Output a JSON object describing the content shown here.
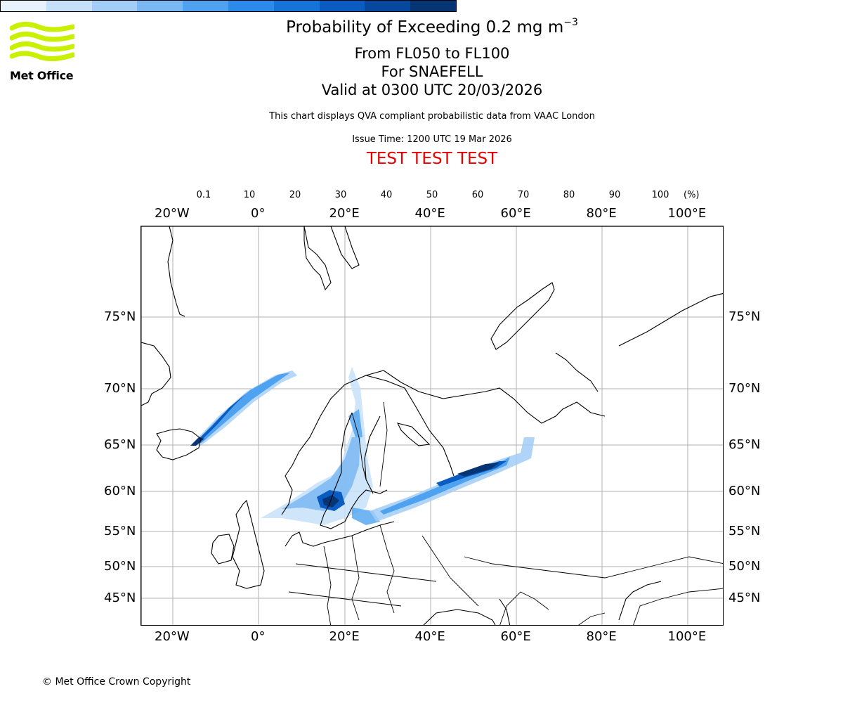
{
  "header": {
    "title": "Probability of Exceeding 0.2 mg m",
    "title_exp": "−3",
    "line1": "From FL050 to FL100",
    "line2": "For SNAEFELL",
    "line3": "Valid at 0300 UTC 20/03/2026",
    "description": "This chart displays QVA compliant probabilistic data from VAAC London",
    "issue_time": "Issue Time: 1200 UTC 19 Mar 2026",
    "test_banner": "TEST TEST TEST",
    "test_color": "#e60000"
  },
  "logo": {
    "text": "Met Office",
    "color": "#c8f000",
    "icon": "met-office-wave-logo"
  },
  "colorbar": {
    "labels": [
      "0.1",
      "10",
      "20",
      "30",
      "40",
      "50",
      "60",
      "70",
      "80",
      "90",
      "100"
    ],
    "unit": "(%)",
    "colors": [
      "#e8f2fd",
      "#c6e0f9",
      "#a2cdf6",
      "#7ab8f3",
      "#4ea2f0",
      "#2b8aea",
      "#1673d8",
      "#0a5cc0",
      "#05489e",
      "#063573"
    ]
  },
  "map": {
    "lon_labels": [
      "20°W",
      "0°",
      "20°E",
      "40°E",
      "60°E",
      "80°E",
      "100°E"
    ],
    "lat_labels_left": [
      "75°N",
      "70°N",
      "65°N",
      "60°N",
      "55°N",
      "50°N",
      "45°N"
    ],
    "lat_labels_right": [
      "75°N",
      "70°N",
      "65°N",
      "60°N",
      "55°N",
      "50°N",
      "45°N"
    ],
    "grid_color": "#b0b0b0"
  },
  "footer": {
    "copyright": "© Met Office Crown Copyright"
  }
}
